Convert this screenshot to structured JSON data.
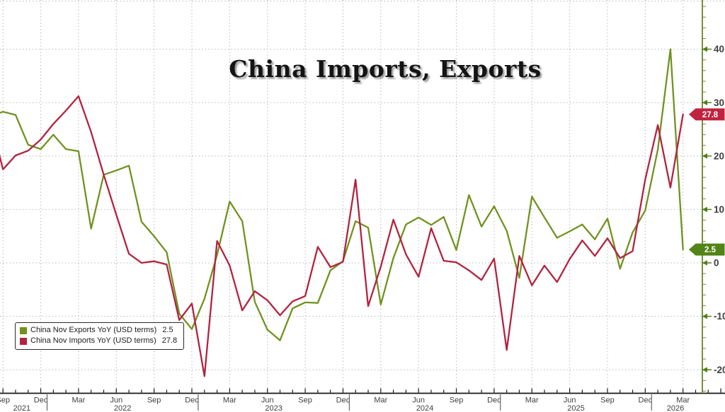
{
  "chart_data": {
    "type": "line",
    "title": "China Imports, Exports",
    "grid": true,
    "legend_position": "bottom-left",
    "categories": [
      "Aug-21",
      "Sep-21",
      "Oct-21",
      "Nov-21",
      "Dec-21",
      "Jan-22",
      "Feb-22",
      "Mar-22",
      "Apr-22",
      "May-22",
      "Jun-22",
      "Jul-22",
      "Aug-22",
      "Sep-22",
      "Oct-22",
      "Nov-22",
      "Dec-22",
      "Jan-23",
      "Feb-23",
      "Mar-23",
      "Apr-23",
      "May-23",
      "Jun-23",
      "Jul-23",
      "Aug-23",
      "Sep-23",
      "Oct-23",
      "Nov-23",
      "Dec-23",
      "Jan-24",
      "Feb-24",
      "Mar-24",
      "Apr-24",
      "May-24",
      "Jun-24",
      "Jul-24",
      "Aug-24",
      "Sep-24",
      "Oct-24",
      "Nov-24",
      "Dec-24",
      "Jan-25",
      "Feb-25",
      "Mar-25",
      "Apr-25",
      "May-25",
      "Jun-25",
      "Jul-25",
      "Aug-25",
      "Sep-25",
      "Oct-25",
      "Nov-25",
      "Dec-25",
      "Jan-26",
      "Feb-26",
      "Mar-26"
    ],
    "series": [
      {
        "name": "China Nov Exports YoY (USD terms)",
        "legend_value": "2.5",
        "color": "#71921f",
        "badge_color": "#538417",
        "values": [
          27.4,
          28.3,
          27.7,
          22.1,
          21.3,
          24.0,
          21.3,
          20.9,
          6.4,
          16.5,
          17.3,
          18.2,
          7.7,
          5.0,
          2.0,
          -9.5,
          -12.4,
          -6.7,
          1.5,
          11.5,
          7.8,
          -7.3,
          -12.5,
          -14.5,
          -8.5,
          -7.4,
          -7.5,
          -1.4,
          0.3,
          7.8,
          6.6,
          -7.8,
          0.9,
          7.2,
          8.5,
          7.1,
          8.6,
          2.4,
          12.7,
          6.8,
          10.6,
          6.0,
          -2.8,
          12.4,
          8.5,
          4.7,
          5.9,
          7.2,
          4.4,
          8.3,
          -1.1,
          5.7,
          9.8,
          21.2,
          40.0,
          2.5
        ]
      },
      {
        "name": "China Nov Imports YoY (USD terms)",
        "legend_value": "27.8",
        "color": "#b2233f",
        "badge_color": "#c0233e",
        "values": [
          27.0,
          17.5,
          20.1,
          21.0,
          23.1,
          26.0,
          28.5,
          31.2,
          24.5,
          16.5,
          9.0,
          1.7,
          0.0,
          0.3,
          -0.3,
          -10.7,
          -7.6,
          -21.2,
          4.1,
          -0.5,
          -8.9,
          -5.3,
          -7.0,
          -9.8,
          -7.2,
          -6.2,
          3.0,
          -0.8,
          0.2,
          15.6,
          -8.1,
          -0.7,
          8.1,
          1.6,
          -2.6,
          6.5,
          0.4,
          0.1,
          -1.4,
          -3.2,
          0.8,
          -16.3,
          1.3,
          -4.2,
          -0.5,
          -3.6,
          0.7,
          4.2,
          1.3,
          4.6,
          0.9,
          2.2,
          15.6,
          25.8,
          14.1,
          27.8
        ]
      }
    ],
    "y_axis": {
      "ticks": [
        40,
        30,
        20,
        10,
        0,
        -10,
        -20
      ],
      "minor_step": 2,
      "ylim": [
        -24.3,
        49.2
      ]
    },
    "x_axis": {
      "quarter_labels": [
        "Sep",
        "Dec",
        "Mar",
        "Jun",
        "Sep",
        "Dec",
        "Mar",
        "Jun",
        "Sep",
        "Dec",
        "Mar",
        "Jun",
        "Sep",
        "Dec",
        "Mar",
        "Jun",
        "Sep",
        "Dec",
        "Mar"
      ],
      "years": [
        {
          "label": "2021",
          "m": 1.5
        },
        {
          "label": "2022",
          "m": 9.5
        },
        {
          "label": "2023",
          "m": 21.5
        },
        {
          "label": "2024",
          "m": 33.5
        },
        {
          "label": "2025",
          "m": 45.5
        },
        {
          "label": "2026",
          "m": 53.4
        }
      ]
    },
    "colors": {
      "grid": "#a9a9a9",
      "bottom_axis": "#161616",
      "right_axis": "#7c8d3b",
      "major_tick": "#4e7d1b",
      "axis_label": "#3f3f3f",
      "year_separator": "#4a4a4a"
    }
  }
}
